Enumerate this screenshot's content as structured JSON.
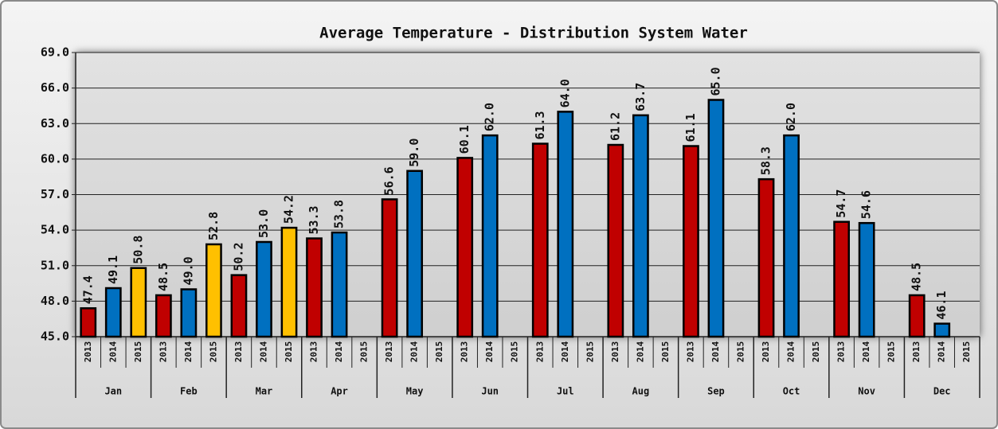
{
  "chart_data": {
    "type": "bar",
    "title": "Average Temperature - Distribution System Water",
    "categories": [
      "Jan",
      "Feb",
      "Mar",
      "Apr",
      "May",
      "Jun",
      "Jul",
      "Aug",
      "Sep",
      "Oct",
      "Nov",
      "Dec"
    ],
    "series": [
      {
        "name": "2013",
        "color": "#c00000",
        "values": [
          47.4,
          48.5,
          50.2,
          53.3,
          56.6,
          60.1,
          61.3,
          61.2,
          61.1,
          58.3,
          54.7,
          48.5
        ],
        "value_labels": [
          "47.4",
          "48.5",
          "50.2",
          "53.3",
          "56.6",
          "60.1",
          "61.3",
          "61.2",
          "61.1",
          "58.3",
          "54.7",
          "48.5"
        ]
      },
      {
        "name": "2014",
        "color": "#0070c0",
        "values": [
          49.1,
          49.0,
          53.0,
          53.8,
          59.0,
          62.0,
          64.0,
          63.7,
          65.0,
          62.0,
          54.6,
          46.1
        ],
        "value_labels": [
          "49.1",
          "49.0",
          "53.0",
          "53.8",
          "59.0",
          "62.0",
          "64.0",
          "63.7",
          "65.0",
          "62.0",
          "54.6",
          "46.1"
        ]
      },
      {
        "name": "2015",
        "color": "#ffc000",
        "values": [
          50.8,
          52.8,
          54.2,
          null,
          null,
          null,
          null,
          null,
          null,
          null,
          null,
          null
        ],
        "value_labels": [
          "50.8",
          "52.8",
          "54.2",
          null,
          null,
          null,
          null,
          null,
          null,
          null,
          null,
          null
        ]
      }
    ],
    "ylim": [
      45,
      69
    ],
    "yticks": [
      {
        "value": 45,
        "label": "45.0"
      },
      {
        "value": 48,
        "label": "48.0"
      },
      {
        "value": 51,
        "label": "51.0"
      },
      {
        "value": 54,
        "label": "54.0"
      },
      {
        "value": 57,
        "label": "57.0"
      },
      {
        "value": 60,
        "label": "60.0"
      },
      {
        "value": 63,
        "label": "63.0"
      },
      {
        "value": 66,
        "label": "66.0"
      },
      {
        "value": 69,
        "label": "69.0"
      }
    ],
    "grid": true
  }
}
